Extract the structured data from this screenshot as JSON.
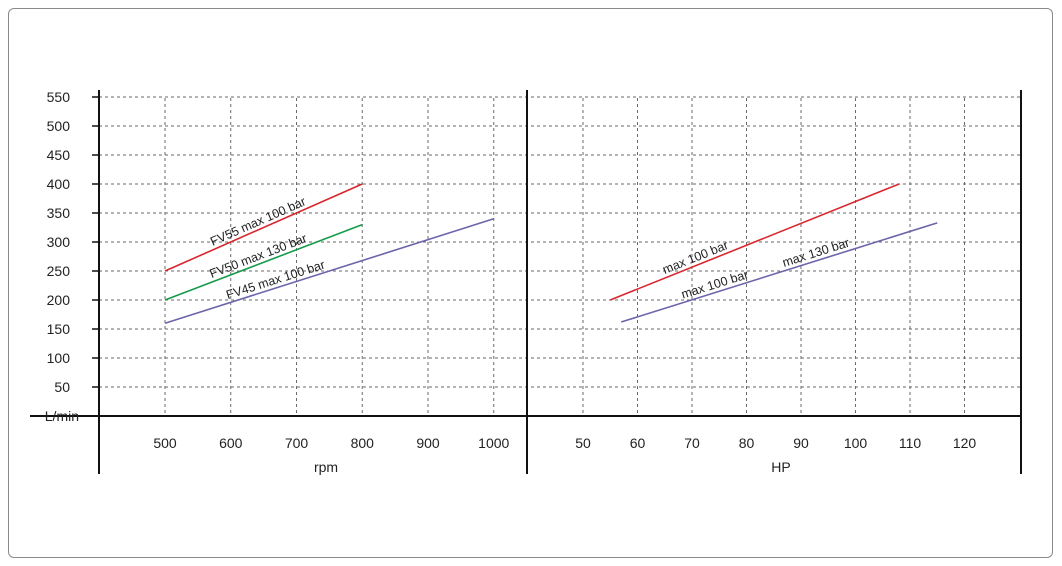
{
  "chart_data": [
    {
      "type": "line",
      "y_unit": "L/min",
      "xlabel": "rpm",
      "ylim": [
        0,
        575
      ],
      "xlim": [
        400,
        1050
      ],
      "x_ticks": [
        "500",
        "600",
        "700",
        "800",
        "900",
        "1000"
      ],
      "y_ticks": [
        "50",
        "100",
        "150",
        "200",
        "250",
        "300",
        "350",
        "400",
        "450",
        "500",
        "550"
      ],
      "grid": true,
      "series": [
        {
          "name": "FV55 max 100 bar",
          "color": "#d9262e",
          "x": [
            500,
            800
          ],
          "y": [
            250,
            400
          ]
        },
        {
          "name": "FV50 max 130 bar",
          "color": "#179b4b",
          "x": [
            500,
            800
          ],
          "y": [
            200,
            330
          ]
        },
        {
          "name": "FV45 max 100 bar",
          "color": "#6b65ac",
          "x": [
            500,
            1000
          ],
          "y": [
            160,
            340
          ]
        }
      ]
    },
    {
      "type": "line",
      "xlabel": "HP",
      "ylim": [
        0,
        575
      ],
      "xlim": [
        40,
        130
      ],
      "x_ticks": [
        "50",
        "60",
        "70",
        "80",
        "90",
        "100",
        "110",
        "120"
      ],
      "grid": true,
      "series": [
        {
          "name": "max 100 bar",
          "color": "#d9262e",
          "x": [
            55,
            108
          ],
          "y": [
            200,
            400
          ]
        },
        {
          "name": "max 100 bar",
          "color": "#6b65ac",
          "x": [
            57,
            115
          ],
          "y": [
            162,
            333
          ]
        }
      ],
      "extra_labels": [
        "max 130 bar"
      ]
    }
  ]
}
